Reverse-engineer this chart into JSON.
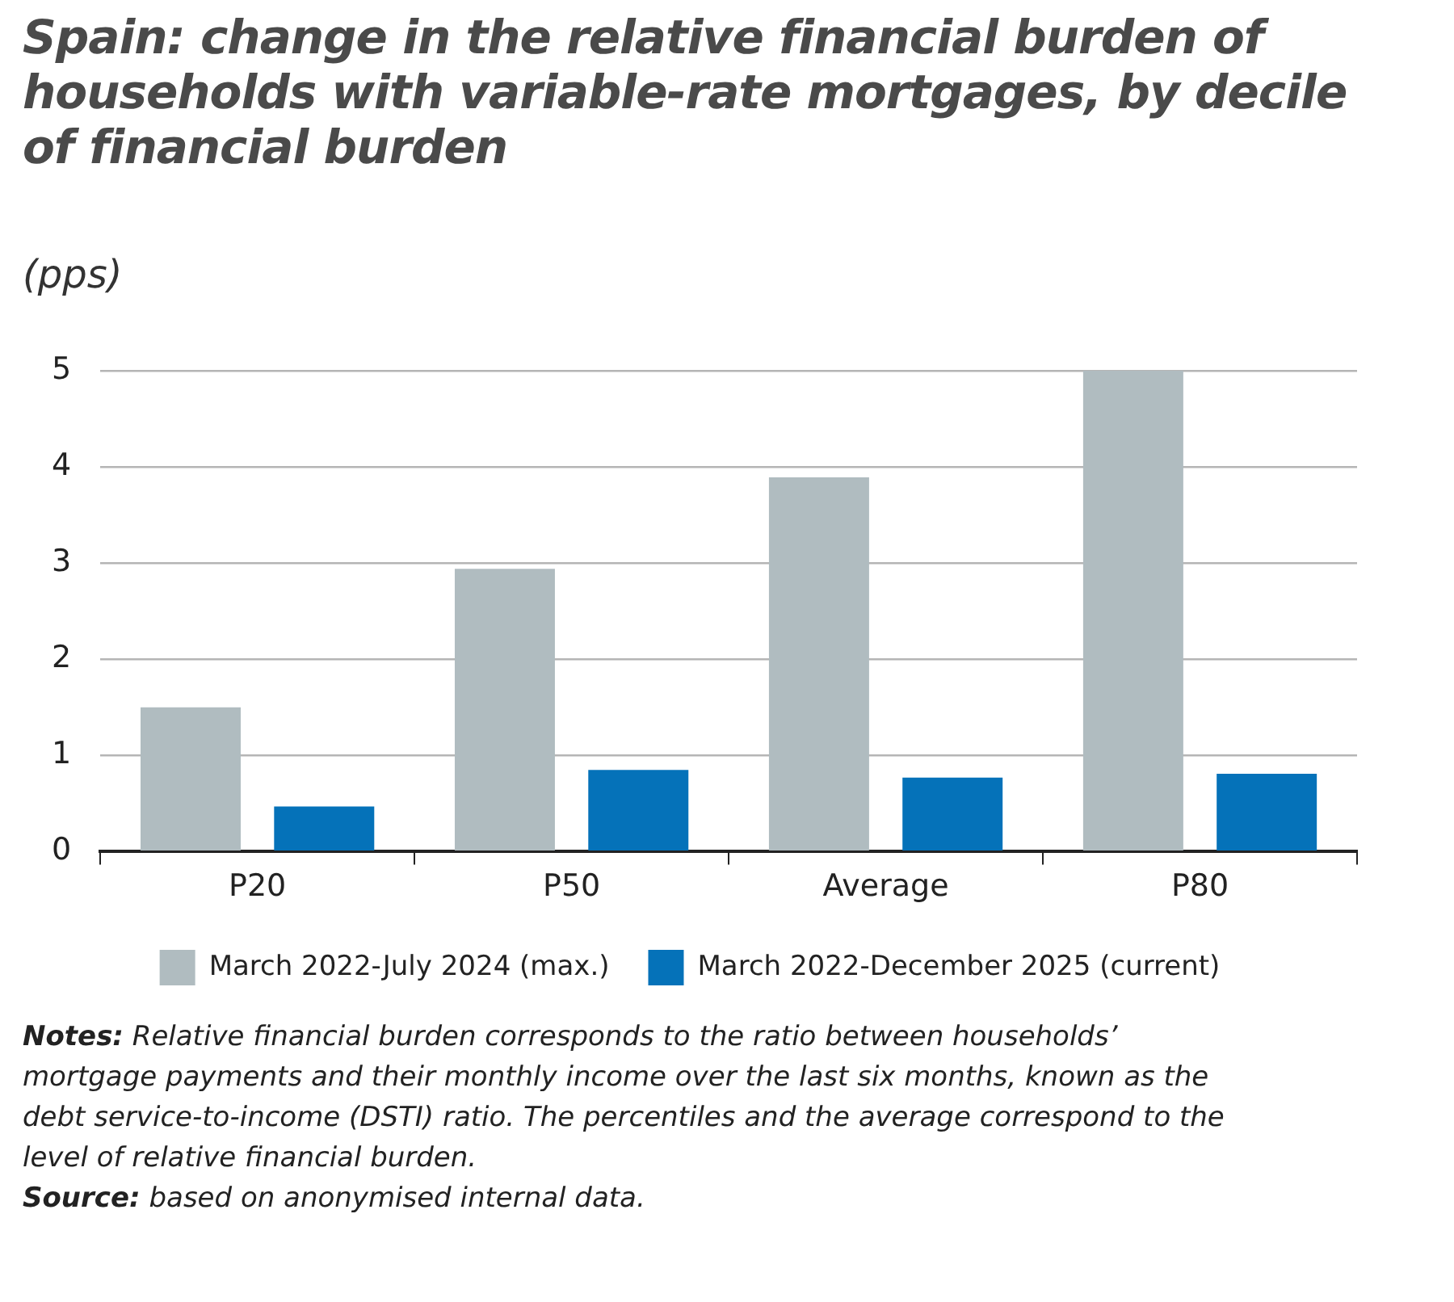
{
  "chart_data": {
    "type": "bar",
    "title": "Spain: change in the relative financial burden of households with variable-rate mortgages, by decile of financial burden",
    "ylabel": "(pps)",
    "categories": [
      "P20",
      "P50",
      "Average",
      "P80"
    ],
    "series": [
      {
        "name": "March 2022-July 2024 (max.)",
        "color": "#b0bcc0",
        "values": [
          1.5,
          2.94,
          3.89,
          5.0
        ]
      },
      {
        "name": "March 2022-December 2025 (current)",
        "color": "#0572b9",
        "values": [
          0.47,
          0.85,
          0.77,
          0.81
        ]
      }
    ],
    "ylim": [
      0,
      5
    ],
    "yticks": [
      0,
      1,
      2,
      3,
      4,
      5
    ],
    "grid": "y",
    "legend": "bottom",
    "annotations": [
      "Notes: Relative financial burden corresponds to the ratio between households’ mortgage payments and their monthly income over the last six months, known as the debt service-to-income (DSTI) ratio. The percentiles and the average correspond to the level of relative financial burden.",
      "Source: based on anonymised internal data."
    ]
  }
}
